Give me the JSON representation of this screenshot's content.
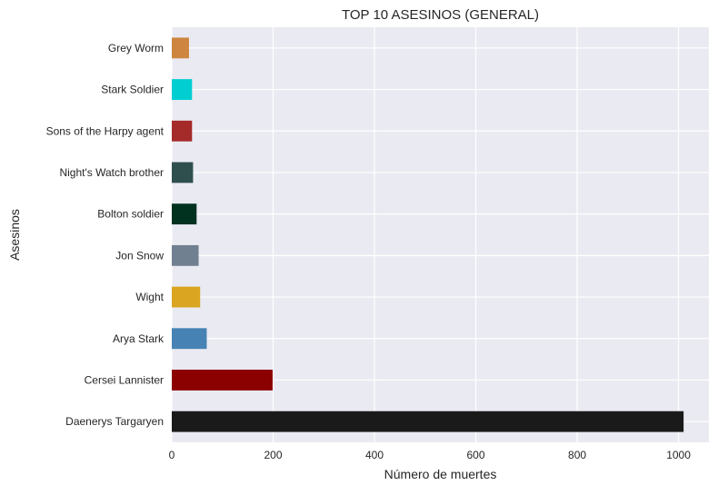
{
  "chart_data": {
    "type": "bar",
    "orientation": "horizontal",
    "title": "TOP 10 ASESINOS (GENERAL)",
    "xlabel": "Número de muertes",
    "ylabel": "Asesinos",
    "xlim": [
      0,
      1060
    ],
    "x_ticks": [
      0,
      200,
      400,
      600,
      800,
      1000
    ],
    "x_tick_labels": [
      "0",
      "200",
      "400",
      "600",
      "800",
      "1000"
    ],
    "grid": true,
    "legend": "none",
    "categories": [
      "Daenerys Targaryen",
      "Cersei Lannister",
      "Arya Stark",
      "Wight",
      "Jon Snow",
      "Bolton soldier",
      "Night's Watch brother",
      "Sons of the Harpy agent",
      "Stark Soldier",
      "Grey Worm"
    ],
    "values": [
      1010,
      199,
      69,
      56,
      53,
      49,
      42,
      40,
      40,
      34
    ],
    "colors": [
      "#1a1a1a",
      "#8b0000",
      "#4682b4",
      "#daa520",
      "#708090",
      "#013220",
      "#2f4f4f",
      "#a52a2a",
      "#00ced1",
      "#cd853f"
    ]
  },
  "style": {
    "plot_background": "#eaeaf2",
    "grid_color": "#ffffff",
    "text_color": "#262626"
  }
}
